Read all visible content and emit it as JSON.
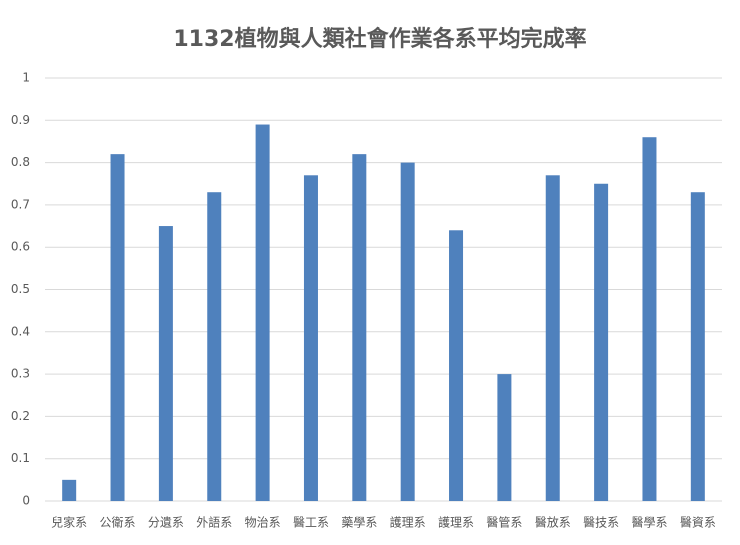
{
  "chart_data": {
    "type": "bar",
    "title": "1132植物與人類社會作業各系平均完成率",
    "categories": [
      "兒家系",
      "公衛系",
      "分遺系",
      "外語系",
      "物治系",
      "醫工系",
      "藥學系",
      "護理系",
      "護理系",
      "醫管系",
      "醫放系",
      "醫技系",
      "醫學系",
      "醫資系"
    ],
    "values": [
      0.05,
      0.82,
      0.65,
      0.73,
      0.89,
      0.77,
      0.82,
      0.8,
      0.64,
      0.3,
      0.77,
      0.75,
      0.86,
      0.73
    ],
    "color": "#4f81bd",
    "ylim": [
      0,
      1
    ],
    "yticks": [
      0,
      0.1,
      0.2,
      0.3,
      0.4,
      0.5,
      0.6,
      0.7,
      0.8,
      0.9,
      1
    ],
    "grid": true
  }
}
